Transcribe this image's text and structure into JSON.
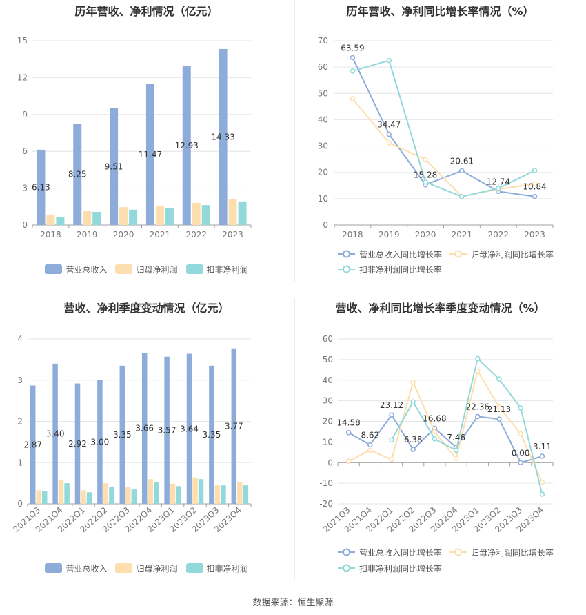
{
  "footer": {
    "source": "数据来源：恒生聚源"
  },
  "chart_data": [
    {
      "type": "bar",
      "title": "历年营收、净利情况（亿元）",
      "categories": [
        "2018",
        "2019",
        "2020",
        "2021",
        "2022",
        "2023"
      ],
      "ylim": [
        0,
        15
      ],
      "yticks": [
        0,
        3,
        6,
        9,
        12,
        15
      ],
      "grid": true,
      "legend_position": "bottom",
      "series": [
        {
          "name": "营业总收入",
          "color": "#8DACDA",
          "values": [
            6.13,
            8.25,
            9.51,
            11.47,
            12.93,
            14.33
          ],
          "data_labels": [
            "6.13",
            "8.25",
            "9.51",
            "11.47",
            "12.93",
            "14.33"
          ]
        },
        {
          "name": "归母净利润",
          "color": "#FDDEAF",
          "values": [
            0.85,
            1.13,
            1.45,
            1.58,
            1.8,
            2.08
          ]
        },
        {
          "name": "扣非净利润",
          "color": "#92D9DB",
          "values": [
            0.63,
            1.07,
            1.25,
            1.4,
            1.62,
            1.92
          ]
        }
      ]
    },
    {
      "type": "line",
      "title": "历年营收、净利同比增长率情况（%）",
      "categories": [
        "2018",
        "2019",
        "2020",
        "2021",
        "2022",
        "2023"
      ],
      "ylim": [
        0,
        70
      ],
      "yticks": [
        0,
        10,
        20,
        30,
        40,
        50,
        60,
        70
      ],
      "grid": true,
      "legend_position": "bottom",
      "series": [
        {
          "name": "营业总收入同比增长率",
          "color": "#8DACDA",
          "values": [
            63.59,
            34.47,
            15.28,
            20.61,
            12.74,
            10.84
          ],
          "data_labels": [
            "63.59",
            "34.47",
            "15.28",
            "20.61",
            "12.74",
            "10.84"
          ]
        },
        {
          "name": "归母净利润同比增长率",
          "color": "#FDDEAF",
          "values": [
            48.0,
            31.2,
            24.9,
            10.8,
            13.6,
            15.6
          ]
        },
        {
          "name": "扣非净利润同比增长率",
          "color": "#92D9DB",
          "values": [
            58.5,
            62.5,
            16.3,
            10.8,
            13.9,
            20.7
          ]
        }
      ]
    },
    {
      "type": "bar",
      "title": "营收、净利季度变动情况（亿元）",
      "categories": [
        "2021Q3",
        "2021Q4",
        "2022Q1",
        "2022Q2",
        "2022Q3",
        "2022Q4",
        "2023Q1",
        "2023Q2",
        "2023Q3",
        "2023Q4"
      ],
      "ylim": [
        0,
        4
      ],
      "yticks": [
        0,
        1,
        2,
        3,
        4
      ],
      "grid": true,
      "legend_position": "bottom",
      "series": [
        {
          "name": "营业总收入",
          "color": "#8DACDA",
          "values": [
            2.87,
            3.4,
            2.92,
            3.0,
            3.35,
            3.66,
            3.57,
            3.64,
            3.35,
            3.77
          ],
          "data_labels": [
            "2.87",
            "3.40",
            "2.92",
            "3.00",
            "3.35",
            "3.66",
            "3.57",
            "3.64",
            "3.35",
            "3.77"
          ]
        },
        {
          "name": "归母净利润",
          "color": "#FDDEAF",
          "values": [
            0.33,
            0.57,
            0.33,
            0.5,
            0.4,
            0.6,
            0.49,
            0.64,
            0.45,
            0.53
          ]
        },
        {
          "name": "扣非净利润",
          "color": "#92D9DB",
          "values": [
            0.31,
            0.5,
            0.28,
            0.42,
            0.35,
            0.52,
            0.43,
            0.6,
            0.45,
            0.45
          ]
        }
      ]
    },
    {
      "type": "line",
      "title": "营收、净利同比增长率季度变动情况（%）",
      "categories": [
        "2021Q3",
        "2021Q4",
        "2022Q1",
        "2022Q2",
        "2022Q3",
        "2022Q4",
        "2023Q1",
        "2023Q2",
        "2023Q3",
        "2023Q4"
      ],
      "ylim": [
        -20,
        60
      ],
      "yticks": [
        -20,
        -10,
        0,
        10,
        20,
        30,
        40,
        50,
        60
      ],
      "grid": true,
      "legend_position": "bottom",
      "series": [
        {
          "name": "营业总收入同比增长率",
          "color": "#8DACDA",
          "values": [
            14.58,
            8.62,
            23.12,
            6.38,
            16.68,
            7.46,
            22.36,
            21.13,
            0.0,
            3.11
          ],
          "data_labels": [
            "14.58",
            "8.62",
            "23.12",
            "6.38",
            "16.68",
            "7.46",
            "22.36",
            "21.13",
            "0.00",
            "3.11"
          ]
        },
        {
          "name": "归母净利润同比增长率",
          "color": "#FDDEAF",
          "values": [
            0.7,
            6.0,
            1.5,
            39.0,
            15.0,
            2.0,
            44.5,
            27.0,
            14.0,
            -9.5
          ]
        },
        {
          "name": "扣非净利润同比增长率",
          "color": "#92D9DB",
          "values": [
            null,
            null,
            11.0,
            29.5,
            11.5,
            6.0,
            50.5,
            40.5,
            26.5,
            -15.3
          ]
        }
      ]
    }
  ]
}
